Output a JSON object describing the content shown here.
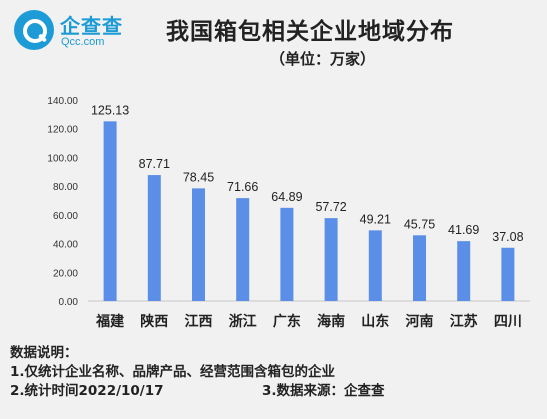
{
  "logo": {
    "name_cn": "企查查",
    "name_en": "Qcc.com"
  },
  "chart_data": {
    "type": "bar",
    "title": "我国箱包相关企业地域分布",
    "subtitle": "（单位：万家）",
    "categories": [
      "福建",
      "陕西",
      "江西",
      "浙江",
      "广东",
      "海南",
      "山东",
      "河南",
      "江苏",
      "四川"
    ],
    "values": [
      125.13,
      87.71,
      78.45,
      71.66,
      64.89,
      57.72,
      49.21,
      45.75,
      41.69,
      37.08
    ],
    "value_labels": [
      "125.13",
      "87.71",
      "78.45",
      "71.66",
      "64.89",
      "57.72",
      "49.21",
      "45.75",
      "41.69",
      "37.08"
    ],
    "yticks": [
      "0.00",
      "20.00",
      "40.00",
      "60.00",
      "80.00",
      "100.00",
      "120.00",
      "140.00"
    ],
    "ylim": [
      0,
      140
    ],
    "bar_color": "#5b8ee6",
    "grid": false
  },
  "notes": {
    "heading": "数据说明：",
    "item1": "1.仅统计企业名称、品牌产品、经营范围含箱包的企业",
    "item2": "2.统计时间2022/10/17",
    "item3": "3.数据来源：企查查"
  }
}
